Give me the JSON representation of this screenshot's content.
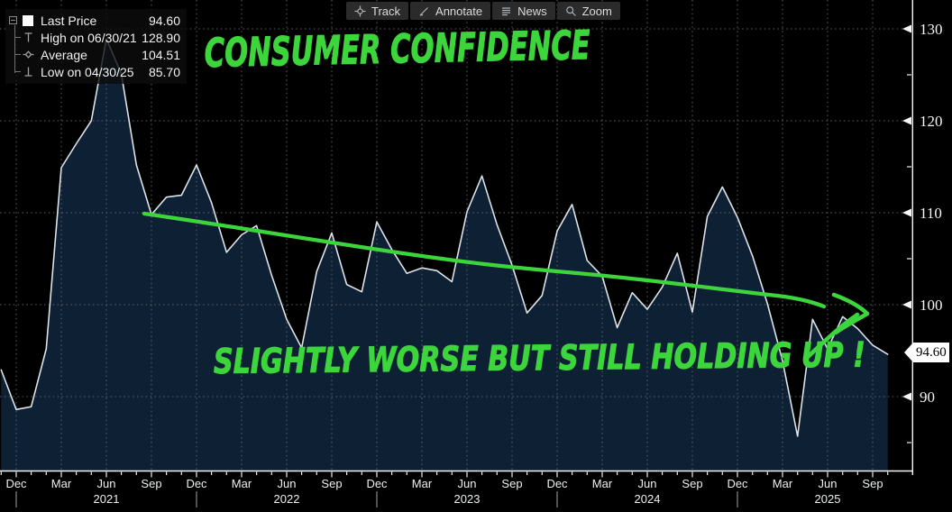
{
  "toolbar": {
    "buttons": [
      {
        "label": "Track",
        "icon": "crosshair-icon"
      },
      {
        "label": "Annotate",
        "icon": "pencil-icon"
      },
      {
        "label": "News",
        "icon": "news-lines-icon"
      },
      {
        "label": "Zoom",
        "icon": "magnifier-icon"
      }
    ]
  },
  "legend": {
    "rows": [
      {
        "label": "Last Price",
        "value": "94.60",
        "icon": "white-square-swatch"
      },
      {
        "label": "High on 06/30/21",
        "value": "128.90",
        "icon": "high-marker-icon"
      },
      {
        "label": "Average",
        "value": "104.51",
        "icon": "average-marker-icon"
      },
      {
        "label": "Low on 04/30/25",
        "value": "85.70",
        "icon": "low-marker-icon"
      }
    ]
  },
  "annotations": {
    "title": "CONSUMER CONFIDENCE",
    "comment": "SLIGHTLY WORSE BUT STILL HOLDING UP !",
    "color": "#3cd53c"
  },
  "price_marker": {
    "value": "94.60"
  },
  "chart_data": {
    "type": "area",
    "title": "Consumer Confidence",
    "x_unit": "month",
    "x": [
      "Nov 2020",
      "Dec 2020",
      "Jan 2021",
      "Feb 2021",
      "Mar 2021",
      "Apr 2021",
      "May 2021",
      "Jun 2021",
      "Jul 2021",
      "Aug 2021",
      "Sep 2021",
      "Oct 2021",
      "Nov 2021",
      "Dec 2021",
      "Jan 2022",
      "Feb 2022",
      "Mar 2022",
      "Apr 2022",
      "May 2022",
      "Jun 2022",
      "Jul 2022",
      "Aug 2022",
      "Sep 2022",
      "Oct 2022",
      "Nov 2022",
      "Dec 2022",
      "Jan 2023",
      "Feb 2023",
      "Mar 2023",
      "Apr 2023",
      "May 2023",
      "Jun 2023",
      "Jul 2023",
      "Aug 2023",
      "Sep 2023",
      "Oct 2023",
      "Nov 2023",
      "Dec 2023",
      "Jan 2024",
      "Feb 2024",
      "Mar 2024",
      "Apr 2024",
      "May 2024",
      "Jun 2024",
      "Jul 2024",
      "Aug 2024",
      "Sep 2024",
      "Oct 2024",
      "Nov 2024",
      "Dec 2024",
      "Jan 2025",
      "Feb 2025",
      "Mar 2025",
      "Apr 2025",
      "May 2025",
      "Jun 2025",
      "Jul 2025",
      "Aug 2025",
      "Sep 2025",
      "Oct 2025"
    ],
    "values": [
      92.9,
      88.6,
      88.9,
      95.2,
      114.9,
      117.5,
      120.0,
      128.9,
      125.1,
      115.2,
      109.8,
      111.7,
      111.9,
      115.2,
      111.1,
      105.7,
      107.6,
      108.6,
      103.2,
      98.4,
      95.3,
      103.6,
      107.8,
      102.2,
      101.4,
      109.0,
      106.0,
      103.4,
      104.0,
      103.7,
      102.5,
      110.1,
      114.0,
      108.7,
      104.3,
      99.1,
      101.0,
      108.0,
      110.9,
      104.8,
      103.1,
      97.5,
      101.3,
      99.5,
      101.9,
      105.6,
      99.2,
      109.6,
      112.8,
      109.5,
      105.3,
      100.1,
      93.9,
      85.7,
      98.4,
      95.2,
      98.7,
      97.4,
      95.6,
      94.6
    ],
    "last_price": 94.6,
    "high": {
      "date": "06/30/21",
      "value": 128.9
    },
    "average": 104.51,
    "low": {
      "date": "04/30/25",
      "value": 85.7
    },
    "y_axis": {
      "major": [
        90,
        100,
        110,
        120,
        130
      ],
      "minor": [
        85,
        95,
        105,
        115,
        125
      ]
    },
    "x_tick_labels": [
      "Dec",
      "Mar",
      "Jun",
      "Sep",
      "Dec",
      "Mar",
      "Jun",
      "Sep",
      "Dec",
      "Mar",
      "Jun",
      "Sep",
      "Dec",
      "Mar",
      "Jun",
      "Sep",
      "Dec",
      "Mar",
      "Jun",
      "Sep"
    ],
    "year_labels": [
      "2021",
      "2022",
      "2023",
      "2024",
      "2025"
    ],
    "ylim_visible": [
      82,
      133
    ],
    "grid": "dotted",
    "legend_position": "top-left",
    "line_color": "#dce3e9",
    "fill_color": "#0e2034",
    "grid_color": "#5d6268",
    "axis_color": "#f5f5f5"
  }
}
